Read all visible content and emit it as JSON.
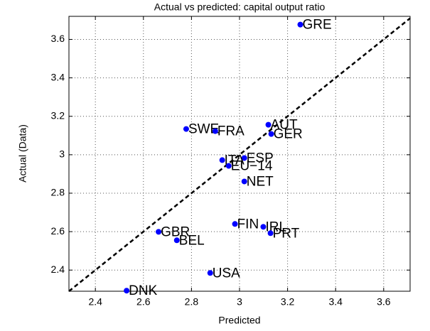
{
  "chart_data": {
    "type": "scatter",
    "title": "Actual vs predicted: capital output ratio",
    "xlabel": "Predicted",
    "ylabel": "Actual (Data)",
    "x": [
      3.253,
      2.778,
      2.899,
      3.12,
      3.132,
      3.02,
      2.928,
      2.955,
      3.02,
      2.981,
      3.099,
      3.129,
      2.663,
      2.739,
      2.878,
      2.53
    ],
    "values": [
      3.677,
      3.134,
      3.123,
      3.156,
      3.108,
      2.983,
      2.972,
      2.942,
      2.861,
      2.64,
      2.625,
      2.592,
      2.599,
      2.555,
      2.385,
      2.293
    ],
    "labels": [
      "GRE",
      "SWE",
      "FRA",
      "AUT",
      "GER",
      "ESP",
      "ITA",
      "EU−14",
      "NET",
      "FIN",
      "IRL",
      "PRT",
      "GBR",
      "BEL",
      "USA",
      "DNK"
    ],
    "color": "#0000ff",
    "xlim": [
      2.29,
      3.71
    ],
    "ylim": [
      2.29,
      3.72
    ],
    "xticks": [
      2.4,
      2.6,
      2.8,
      3,
      3.2,
      3.4,
      3.6
    ],
    "yticks": [
      2.4,
      2.6,
      2.8,
      3,
      3.2,
      3.4,
      3.6
    ],
    "grid": true
  }
}
